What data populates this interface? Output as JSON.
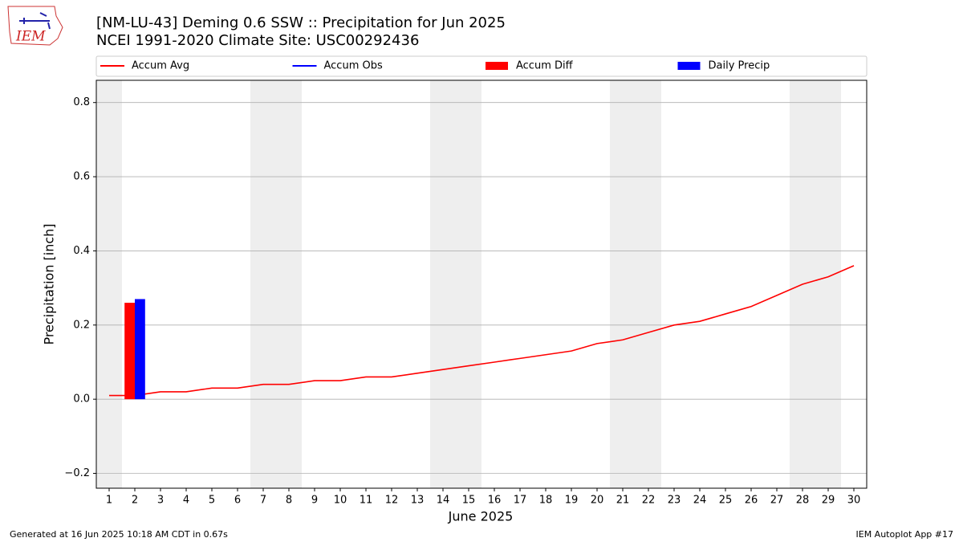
{
  "logo": "IEM",
  "footer": {
    "left": "Generated at 16 Jun 2025 10:18 AM CDT in 0.67s",
    "right": "IEM Autoplot App #17"
  },
  "chart_data": {
    "type": "line",
    "title": "[NM-LU-43] Deming 0.6 SSW :: Precipitation for Jun 2025",
    "subtitle": "NCEI 1991-2020 Climate Site: USC00292436",
    "xlabel": "June 2025",
    "ylabel": "Precipitation [inch]",
    "x": [
      1,
      2,
      3,
      4,
      5,
      6,
      7,
      8,
      9,
      10,
      11,
      12,
      13,
      14,
      15,
      16,
      17,
      18,
      19,
      20,
      21,
      22,
      23,
      24,
      25,
      26,
      27,
      28,
      29,
      30
    ],
    "xlim": [
      0.5,
      30.5
    ],
    "xticks": [
      1,
      2,
      3,
      4,
      5,
      6,
      7,
      8,
      9,
      10,
      11,
      12,
      13,
      14,
      15,
      16,
      17,
      18,
      19,
      20,
      21,
      22,
      23,
      24,
      25,
      26,
      27,
      28,
      29,
      30
    ],
    "ylim": [
      -0.24,
      0.86
    ],
    "yticks": [
      {
        "value": -0.2,
        "label": "−0.2"
      },
      {
        "value": 0,
        "label": "0.0"
      },
      0.2,
      0.4,
      0.6,
      0.8
    ],
    "grid": "y",
    "legend": "top",
    "shaded_days": [
      1,
      7,
      8,
      14,
      15,
      21,
      22,
      28,
      29
    ],
    "shade_color": "#eeeeee",
    "series": [
      {
        "name": "Accum Avg",
        "type": "line",
        "color": "#ff0000",
        "values": [
          0.01,
          0.01,
          0.02,
          0.02,
          0.03,
          0.03,
          0.04,
          0.04,
          0.05,
          0.05,
          0.06,
          0.06,
          0.07,
          0.08,
          0.09,
          0.1,
          0.11,
          0.12,
          0.13,
          0.15,
          0.16,
          0.18,
          0.2,
          0.21,
          0.23,
          0.25,
          0.28,
          0.31,
          0.33,
          0.36
        ]
      },
      {
        "name": "Accum Obs",
        "type": "line",
        "color": "#0000ff",
        "values": [
          null,
          null,
          null,
          null,
          null,
          null,
          null,
          null,
          null,
          null,
          null,
          null,
          null,
          null,
          null,
          null,
          null,
          null,
          null,
          null,
          null,
          null,
          null,
          null,
          null,
          null,
          null,
          null,
          null,
          null
        ]
      },
      {
        "name": "Accum Diff",
        "type": "bar",
        "color": "#ff0000",
        "values": [
          null,
          0.26,
          null,
          null,
          null,
          null,
          null,
          null,
          null,
          null,
          null,
          null,
          null,
          null,
          null,
          null,
          null,
          null,
          null,
          null,
          null,
          null,
          null,
          null,
          null,
          null,
          null,
          null,
          null,
          null
        ]
      },
      {
        "name": "Daily Precip",
        "type": "bar",
        "color": "#0000ff",
        "values": [
          null,
          0.27,
          null,
          null,
          null,
          null,
          null,
          null,
          null,
          null,
          null,
          null,
          null,
          null,
          null,
          null,
          null,
          null,
          null,
          null,
          null,
          null,
          null,
          null,
          null,
          null,
          null,
          null,
          null,
          null
        ]
      }
    ]
  }
}
